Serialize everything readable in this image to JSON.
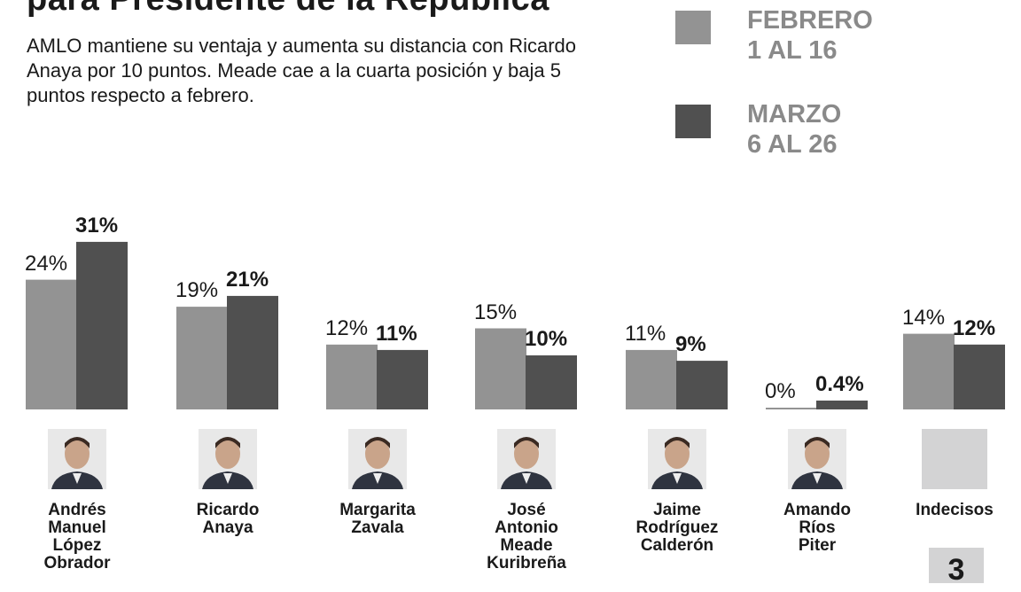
{
  "chart_data": {
    "type": "bar",
    "title": "para Presidente de la República",
    "subtitle": "AMLO mantiene su ventaja y aumenta su distancia con Ricardo Anaya por 10 puntos. Meade cae a la cuarta posición y baja 5 puntos respecto a febrero.",
    "categories": [
      "Andrés Manuel López Obrador",
      "Ricardo Anaya",
      "Margarita Zavala",
      "José Antonio Meade Kuribreña",
      "Jaime Rodríguez Calderón",
      "Amando Ríos Piter",
      "Indecisos"
    ],
    "series": [
      {
        "name": "FEBRERO 1 AL 16",
        "color": "#939393",
        "values": [
          24,
          19,
          12,
          15,
          11,
          0,
          14
        ],
        "labels": [
          "24%",
          "19%",
          "12%",
          "15%",
          "11%",
          "0%",
          "14%"
        ]
      },
      {
        "name": "MARZO 6 AL 26",
        "color": "#505050",
        "values": [
          31,
          21,
          11,
          10,
          9,
          0.4,
          12
        ],
        "labels": [
          "31%",
          "21%",
          "11%",
          "10%",
          "9%",
          "0.4%",
          "12%"
        ]
      }
    ],
    "ylim": [
      0,
      31
    ],
    "grid": false,
    "legend": "top-right"
  },
  "legend": [
    {
      "line1": "FEBRERO",
      "line2": "1 AL 16"
    },
    {
      "line1": "MARZO",
      "line2": "6 AL 26"
    }
  ],
  "names": [
    [
      "Andrés",
      "Manuel",
      "López",
      "Obrador"
    ],
    [
      "Ricardo",
      "Anaya"
    ],
    [
      "Margarita",
      "Zavala"
    ],
    [
      "José",
      "Antonio",
      "Meade",
      "Kuribreña"
    ],
    [
      "Jaime",
      "Rodríguez",
      "Calderón"
    ],
    [
      "Amando",
      "Ríos",
      "Piter"
    ],
    [
      "Indecisos"
    ]
  ],
  "badge": "3"
}
